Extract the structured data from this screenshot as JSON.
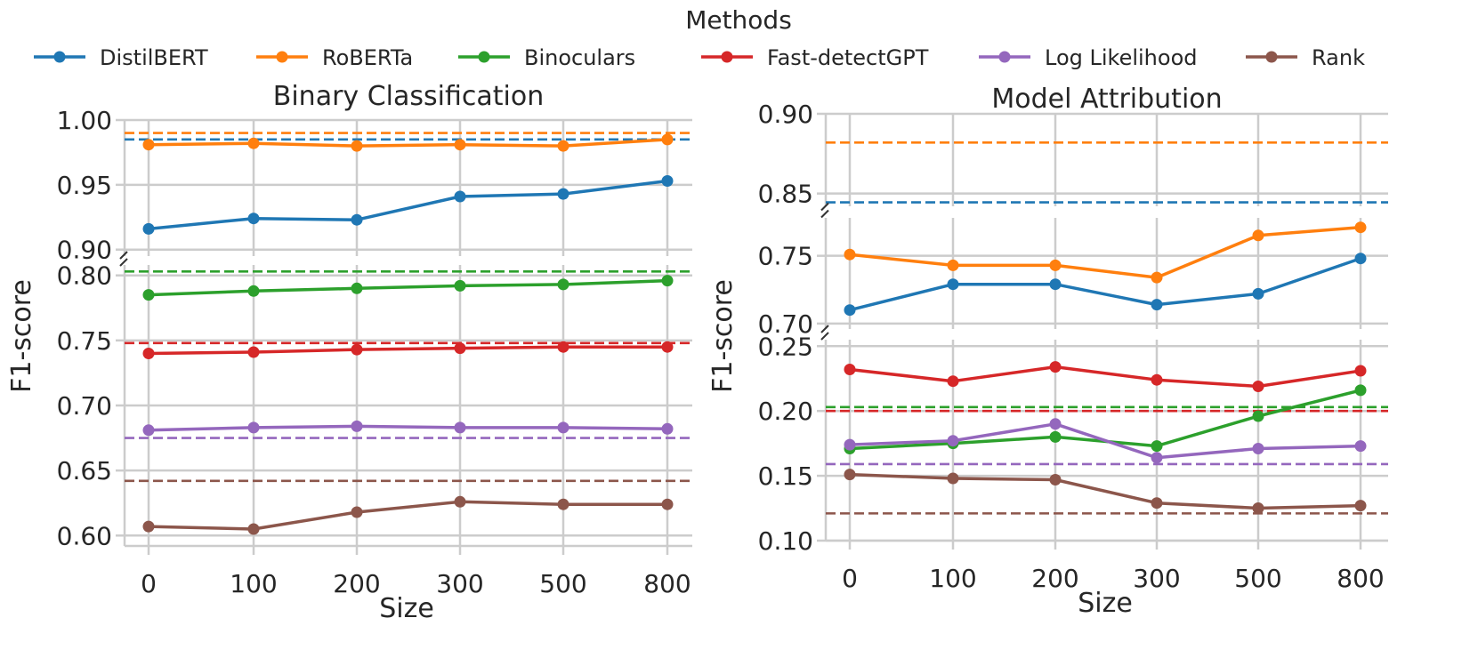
{
  "legend": {
    "title": "Methods",
    "entries": [
      "DistilBERT",
      "RoBERTa",
      "Binoculars",
      "Fast-detectGPT",
      "Log Likelihood",
      "Rank"
    ]
  },
  "colors": {
    "DistilBERT": "#1f77b4",
    "RoBERTa": "#ff7f0e",
    "Binoculars": "#2ca02c",
    "Fast-detectGPT": "#d62728",
    "Log Likelihood": "#9467bd",
    "Rank": "#8c564b",
    "grid": "#cccccc",
    "axis": "#cccccc"
  },
  "chart_data": [
    {
      "type": "line",
      "title": "Binary Classification",
      "xlabel": "Size",
      "ylabel": "F1-score",
      "categories": [
        "0",
        "100",
        "200",
        "300",
        "500",
        "800"
      ],
      "panels": [
        {
          "ylim": [
            0.895,
            1.0
          ],
          "yticks": [
            "0.90",
            "0.95",
            "1.00"
          ]
        },
        {
          "ylim": [
            0.592,
            0.808
          ],
          "yticks": [
            "0.60",
            "0.65",
            "0.70",
            "0.75",
            "0.80"
          ]
        }
      ],
      "series": [
        {
          "name": "DistilBERT",
          "values": [
            0.916,
            0.924,
            0.923,
            0.941,
            0.943,
            0.953
          ],
          "baseline": 0.985
        },
        {
          "name": "RoBERTa",
          "values": [
            0.981,
            0.982,
            0.98,
            0.981,
            0.98,
            0.985
          ],
          "baseline": 0.99
        },
        {
          "name": "Binoculars",
          "values": [
            0.785,
            0.788,
            0.79,
            0.792,
            0.793,
            0.796
          ],
          "baseline": 0.803
        },
        {
          "name": "Fast-detectGPT",
          "values": [
            0.74,
            0.741,
            0.743,
            0.744,
            0.745,
            0.745
          ],
          "baseline": 0.748
        },
        {
          "name": "Log Likelihood",
          "values": [
            0.681,
            0.683,
            0.684,
            0.683,
            0.683,
            0.682
          ],
          "baseline": 0.675
        },
        {
          "name": "Rank",
          "values": [
            0.607,
            0.605,
            0.618,
            0.626,
            0.624,
            0.624
          ],
          "baseline": 0.642
        }
      ]
    },
    {
      "type": "line",
      "title": "Model Attribution",
      "xlabel": "Size",
      "ylabel": "F1-score",
      "categories": [
        "0",
        "100",
        "200",
        "300",
        "500",
        "800"
      ],
      "panels": [
        {
          "ylim": [
            0.842,
            0.9
          ],
          "yticks": [
            "0.85",
            "0.90"
          ]
        },
        {
          "ylim": [
            0.696,
            0.778
          ],
          "yticks": [
            "0.70",
            "0.75"
          ]
        },
        {
          "ylim": [
            0.1,
            0.255
          ],
          "yticks": [
            "0.10",
            "0.15",
            "0.20",
            "0.25"
          ]
        }
      ],
      "series": [
        {
          "name": "DistilBERT",
          "values": [
            0.71,
            0.729,
            0.729,
            0.714,
            0.722,
            0.748
          ],
          "baseline": 0.8445
        },
        {
          "name": "RoBERTa",
          "values": [
            0.751,
            0.743,
            0.743,
            0.734,
            0.765,
            0.771
          ],
          "baseline": 0.882
        },
        {
          "name": "Binoculars",
          "values": [
            0.171,
            0.175,
            0.18,
            0.173,
            0.196,
            0.216
          ],
          "baseline": 0.203
        },
        {
          "name": "Fast-detectGPT",
          "values": [
            0.232,
            0.223,
            0.234,
            0.224,
            0.219,
            0.231
          ],
          "baseline": 0.2
        },
        {
          "name": "Log Likelihood",
          "values": [
            0.174,
            0.177,
            0.19,
            0.164,
            0.171,
            0.173
          ],
          "baseline": 0.159
        },
        {
          "name": "Rank",
          "values": [
            0.151,
            0.148,
            0.147,
            0.129,
            0.125,
            0.127
          ],
          "baseline": 0.121
        }
      ]
    }
  ]
}
